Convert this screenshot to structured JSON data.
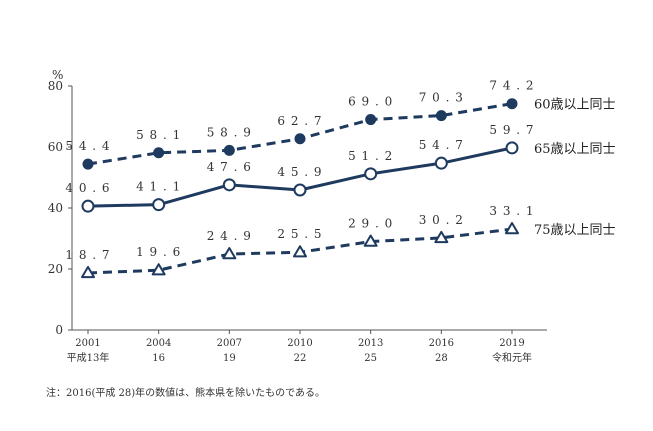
{
  "chart_data": {
    "type": "line",
    "y_unit": "%",
    "ylim": [
      0,
      80
    ],
    "y_ticks": [
      0,
      20,
      40,
      60,
      80
    ],
    "x_ticks": [
      {
        "year": "2001",
        "era": "平成13年"
      },
      {
        "year": "2004",
        "era": "16"
      },
      {
        "year": "2007",
        "era": "19"
      },
      {
        "year": "2010",
        "era": "22"
      },
      {
        "year": "2013",
        "era": "25"
      },
      {
        "year": "2016",
        "era": "28"
      },
      {
        "year": "2019",
        "era": "令和元年"
      }
    ],
    "series": [
      {
        "name": "60歳以上同士",
        "values": [
          54.4,
          58.1,
          58.9,
          62.7,
          69.0,
          70.3,
          74.2
        ],
        "labels": [
          "54.4",
          "58.1",
          "58.9",
          "62.7",
          "69.0",
          "70.3",
          "74.2"
        ],
        "line_style": "dashed",
        "marker": "filled-circle",
        "color": "#1f3a5f"
      },
      {
        "name": "65歳以上同士",
        "values": [
          40.6,
          41.1,
          47.6,
          45.9,
          51.2,
          54.7,
          59.7
        ],
        "labels": [
          "40.6",
          "41.1",
          "47.6",
          "45.9",
          "51.2",
          "54.7",
          "59.7"
        ],
        "line_style": "solid",
        "marker": "open-circle",
        "color": "#1f3a5f"
      },
      {
        "name": "75歳以上同士",
        "values": [
          18.7,
          19.6,
          24.9,
          25.5,
          29.0,
          30.2,
          33.1
        ],
        "labels": [
          "18.7",
          "19.6",
          "24.9",
          "25.5",
          "29.0",
          "30.2",
          "33.1"
        ],
        "line_style": "dashed",
        "marker": "open-triangle",
        "color": "#1f3a5f"
      }
    ],
    "note": "注：2016(平成 28)年の数値は、熊本県を除いたものである。"
  }
}
